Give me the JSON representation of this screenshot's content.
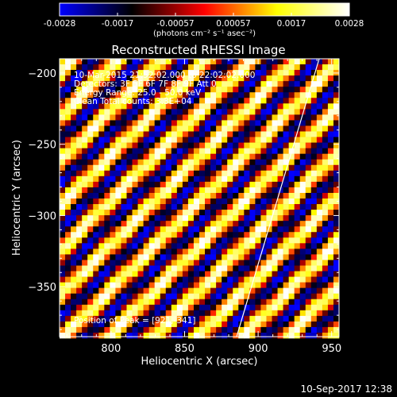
{
  "chart_data": {
    "type": "heatmap",
    "title": "Reconstructed RHESSI Image",
    "xlabel": "Heliocentric X (arcsec)",
    "ylabel": "Heliocentric Y (arcsec)",
    "xlim": [
      765,
      955
    ],
    "ylim": [
      -385,
      -190
    ],
    "x_ticks": [
      800,
      850,
      900,
      950
    ],
    "y_ticks": [
      -200,
      -250,
      -300,
      -350
    ],
    "colorbar": {
      "min": -0.0028,
      "max": 0.0028,
      "ticks": [
        "-0.0028",
        "-0.0017",
        "-0.00057",
        "0.00057",
        "0.0017",
        "0.0028"
      ],
      "unit_label": "(photons cm⁻² s⁻¹ asec⁻²)",
      "colors": [
        "#0000ff",
        "#000000",
        "#ff0000",
        "#ffff00",
        "#ffffff"
      ]
    },
    "pattern": "diagonal stripes",
    "annotations": [
      "10-Mar-2015 21:52:02.000 to 22:02:02.000",
      "Detectors: 3F 5F 6F 7F 8F 9F Att 0",
      "Energy Range: 25.0 - 50.0 keV",
      "Clean      Total counts: 3.3E+04",
      "Position of Peak = [921,-341]"
    ]
  },
  "footer": {
    "timestamp": "10-Sep-2017 12:38"
  }
}
